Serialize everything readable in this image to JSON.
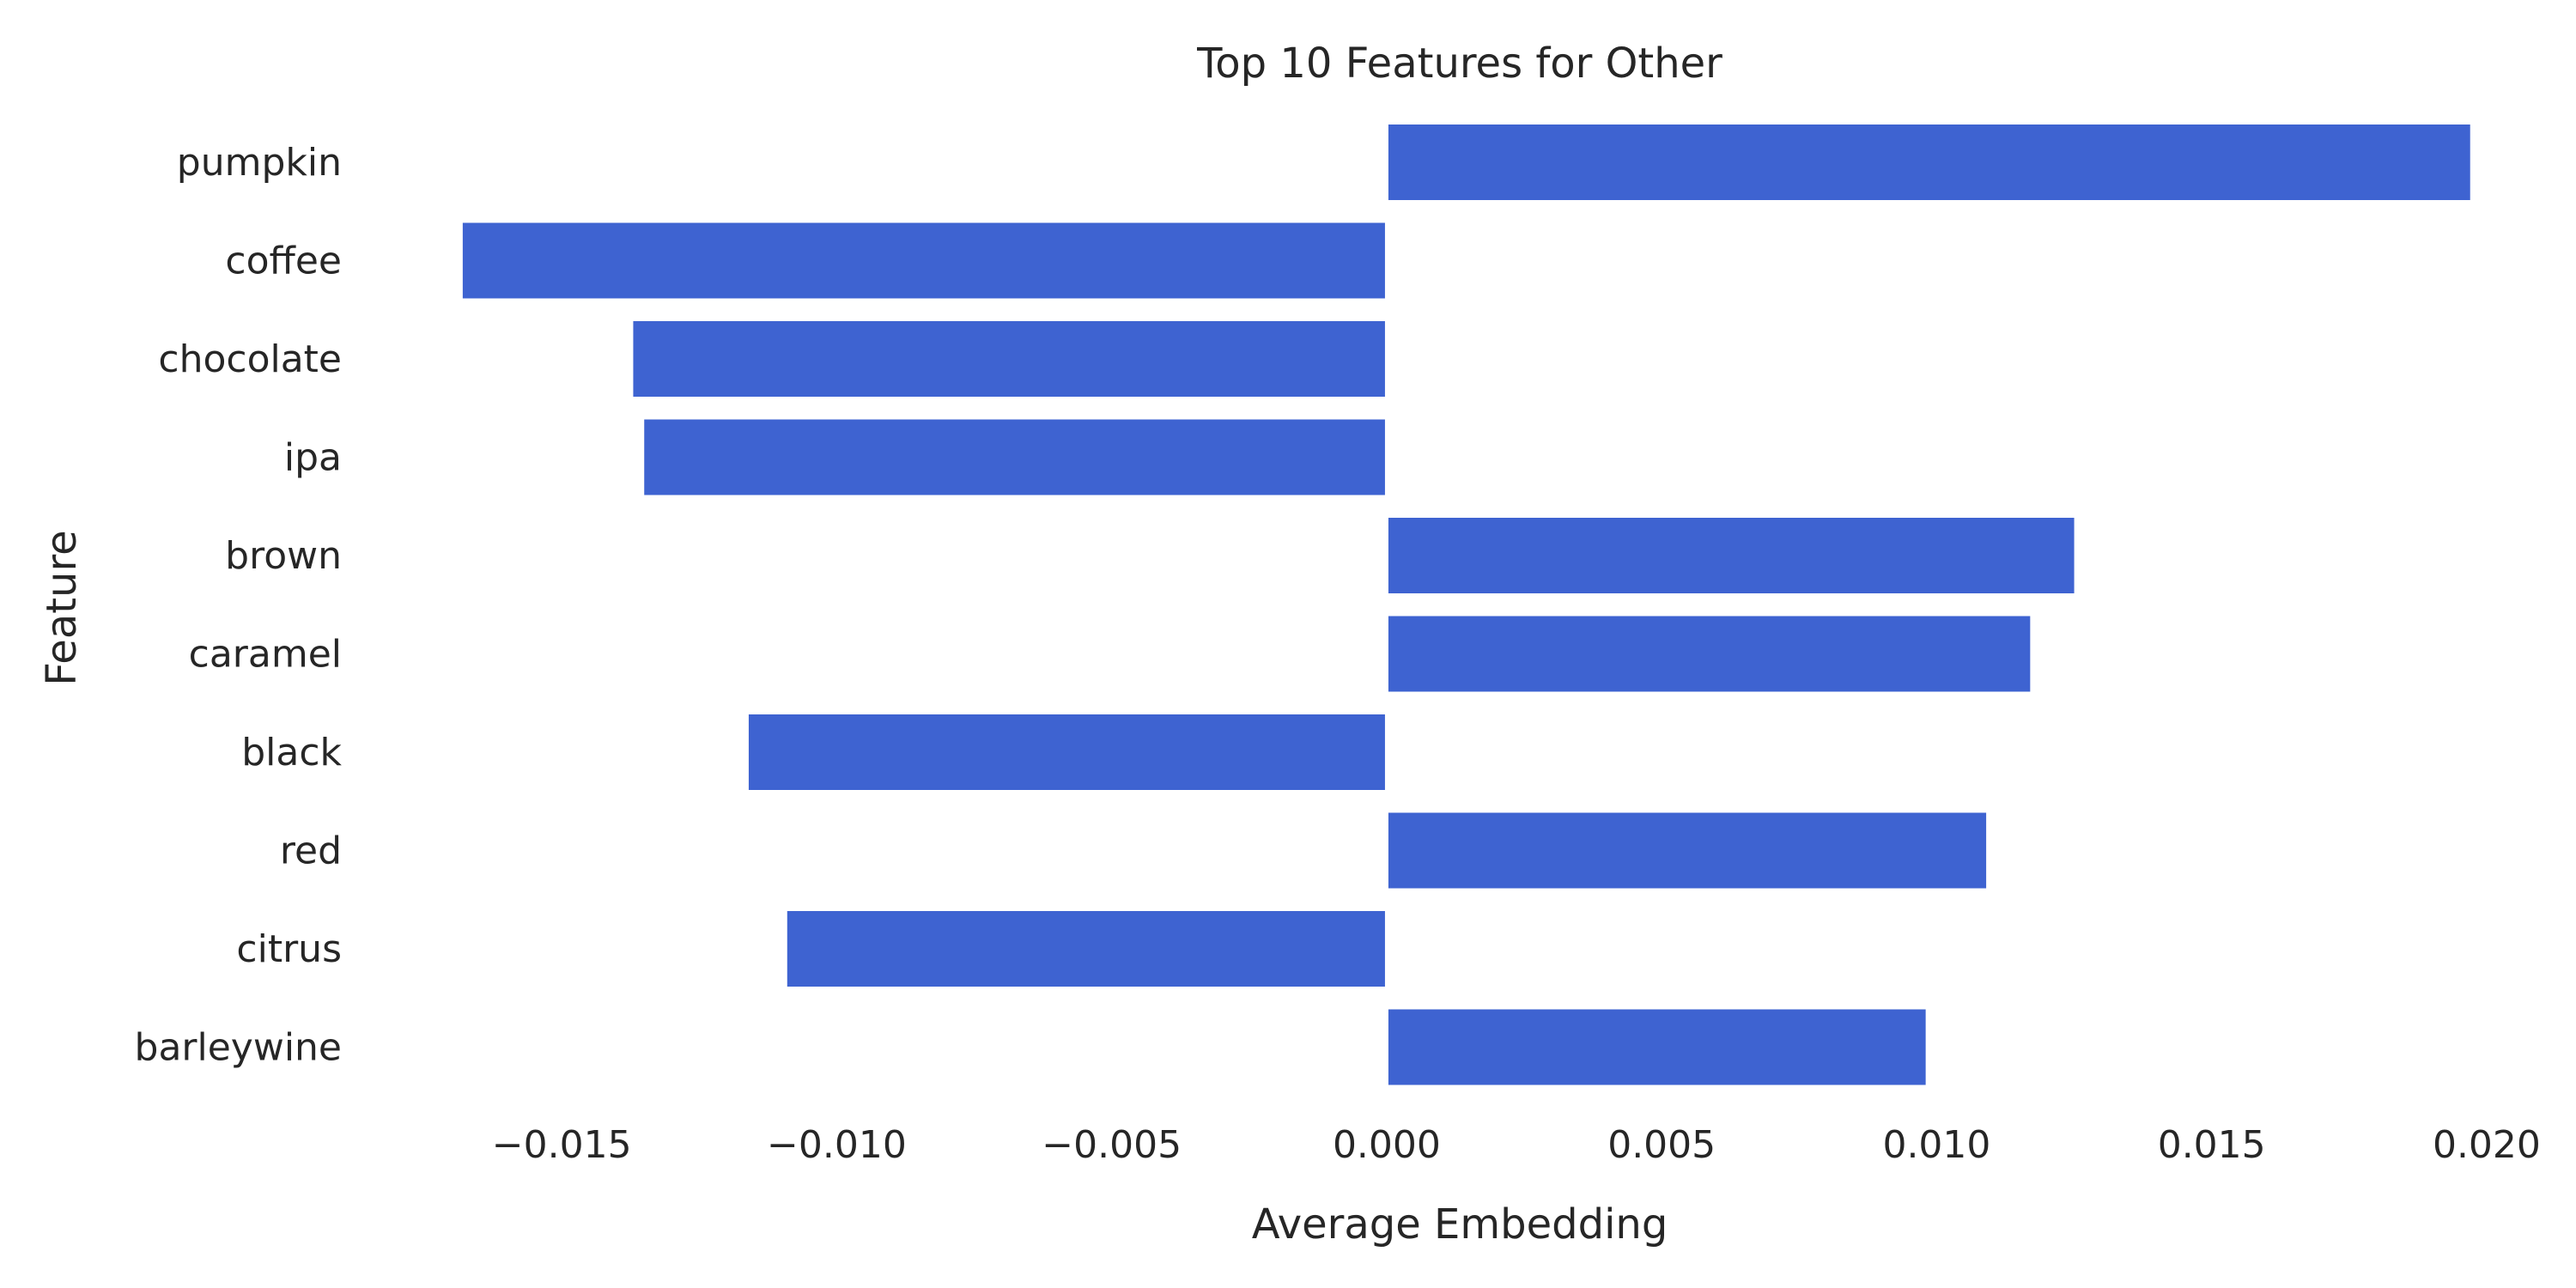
{
  "chart_data": {
    "type": "bar",
    "orientation": "horizontal",
    "title": "Top 10 Features for Other",
    "xlabel": "Average Embedding",
    "ylabel": "Feature",
    "categories": [
      "pumpkin",
      "coffee",
      "chocolate",
      "ipa",
      "brown",
      "caramel",
      "black",
      "red",
      "citrus",
      "barleywine"
    ],
    "values": [
      0.0197,
      -0.0168,
      -0.0137,
      -0.0135,
      0.0125,
      0.0117,
      -0.0116,
      0.0109,
      -0.0109,
      0.0098
    ],
    "xlim": [
      -0.0185,
      0.021
    ],
    "xticks": [
      -0.015,
      -0.01,
      -0.005,
      0.0,
      0.005,
      0.01,
      0.015,
      0.02
    ],
    "xtick_labels": [
      "−0.015",
      "−0.010",
      "−0.005",
      "0.000",
      "0.005",
      "0.010",
      "0.015",
      "0.020"
    ],
    "bar_color": "#3e63d1",
    "grid": false,
    "legend": "none"
  }
}
